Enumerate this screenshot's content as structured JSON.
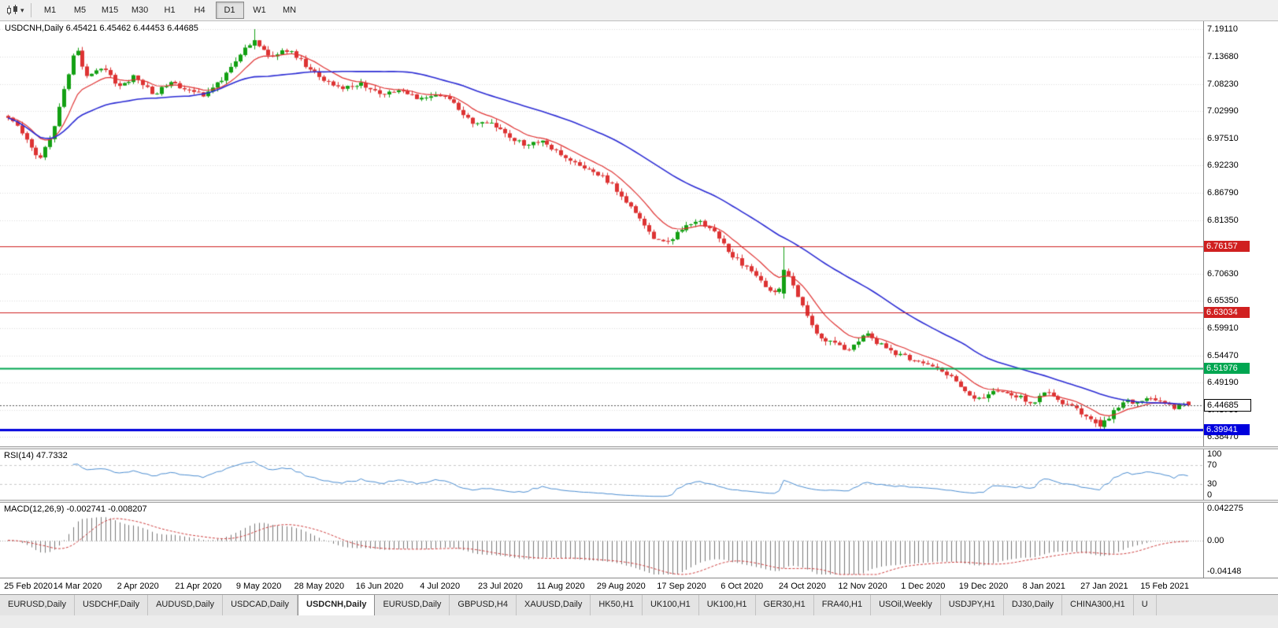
{
  "toolbar": {
    "chart_icon": "candlestick-chart-icon",
    "timeframes": [
      {
        "label": "M1",
        "active": false
      },
      {
        "label": "M5",
        "active": false
      },
      {
        "label": "M15",
        "active": false
      },
      {
        "label": "M30",
        "active": false
      },
      {
        "label": "H1",
        "active": false
      },
      {
        "label": "H4",
        "active": false
      },
      {
        "label": "D1",
        "active": true
      },
      {
        "label": "W1",
        "active": false
      },
      {
        "label": "MN",
        "active": false
      }
    ]
  },
  "chart": {
    "title": "USDCNH,Daily",
    "header_text": "USDCNH,Daily 6.45421 6.45462 6.44453 6.44685"
  },
  "colors": {
    "candle_up": "#13a013",
    "candle_down": "#dd3333",
    "ma_fast": "#e03333",
    "ma_slow": "#2b2bd4",
    "hline_red": "#d02020",
    "hline_green": "#00a651",
    "hline_blue": "#0000dd",
    "rsi_line": "#4c8ed2",
    "macd_hist": "#777777",
    "macd_signal": "#d04040",
    "grid": "#dcdcdc",
    "current_price_line": "#555555"
  },
  "chart_data": {
    "type": "candlestick",
    "symbol": "USDCNH",
    "timeframe": "Daily",
    "ohlc": {
      "open": 6.45421,
      "high": 6.45462,
      "low": 6.44453,
      "close": 6.44685
    },
    "y_axis_labels": [
      "7.19110",
      "7.13680",
      "7.08230",
      "7.02990",
      "6.97510",
      "6.92230",
      "6.86790",
      "6.81350",
      "6.76090",
      "6.70630",
      "6.65350",
      "6.59910",
      "6.54470",
      "6.49190",
      "6.43750",
      "6.38470"
    ],
    "y_range": [
      6.366,
      7.2067
    ],
    "x_labels": [
      "25 Feb 2020",
      "14 Mar 2020",
      "2 Apr 2020",
      "21 Apr 2020",
      "9 May 2020",
      "28 May 2020",
      "16 Jun 2020",
      "4 Jul 2020",
      "23 Jul 2020",
      "11 Aug 2020",
      "29 Aug 2020",
      "17 Sep 2020",
      "6 Oct 2020",
      "24 Oct 2020",
      "12 Nov 2020",
      "1 Dec 2020",
      "19 Dec 2020",
      "8 Jan 2021",
      "27 Jan 2021",
      "15 Feb 2021"
    ],
    "first_label_index": 2,
    "label_step": 13,
    "candle_count": 255,
    "price_path_anchors": [
      [
        0.0,
        7.02
      ],
      [
        0.012,
        6.988
      ],
      [
        0.026,
        6.934
      ],
      [
        0.036,
        6.975
      ],
      [
        0.048,
        7.075
      ],
      [
        0.057,
        7.158
      ],
      [
        0.066,
        7.1
      ],
      [
        0.08,
        7.118
      ],
      [
        0.094,
        7.078
      ],
      [
        0.108,
        7.098
      ],
      [
        0.123,
        7.062
      ],
      [
        0.138,
        7.09
      ],
      [
        0.152,
        7.068
      ],
      [
        0.168,
        7.06
      ],
      [
        0.183,
        7.098
      ],
      [
        0.2,
        7.15
      ],
      [
        0.21,
        7.168
      ],
      [
        0.222,
        7.135
      ],
      [
        0.238,
        7.152
      ],
      [
        0.252,
        7.12
      ],
      [
        0.268,
        7.088
      ],
      [
        0.283,
        7.072
      ],
      [
        0.298,
        7.085
      ],
      [
        0.315,
        7.063
      ],
      [
        0.332,
        7.072
      ],
      [
        0.35,
        7.053
      ],
      [
        0.368,
        7.06
      ],
      [
        0.383,
        7.032
      ],
      [
        0.395,
        6.998
      ],
      [
        0.408,
        7.012
      ],
      [
        0.422,
        6.982
      ],
      [
        0.438,
        6.962
      ],
      [
        0.452,
        6.972
      ],
      [
        0.468,
        6.942
      ],
      [
        0.483,
        6.925
      ],
      [
        0.497,
        6.908
      ],
      [
        0.51,
        6.888
      ],
      [
        0.523,
        6.852
      ],
      [
        0.536,
        6.815
      ],
      [
        0.549,
        6.772
      ],
      [
        0.56,
        6.768
      ],
      [
        0.572,
        6.8
      ],
      [
        0.586,
        6.812
      ],
      [
        0.6,
        6.788
      ],
      [
        0.614,
        6.742
      ],
      [
        0.628,
        6.716
      ],
      [
        0.642,
        6.68
      ],
      [
        0.652,
        6.668
      ],
      [
        0.658,
        6.712
      ],
      [
        0.666,
        6.682
      ],
      [
        0.676,
        6.632
      ],
      [
        0.688,
        6.578
      ],
      [
        0.7,
        6.568
      ],
      [
        0.713,
        6.556
      ],
      [
        0.727,
        6.588
      ],
      [
        0.742,
        6.562
      ],
      [
        0.757,
        6.545
      ],
      [
        0.772,
        6.53
      ],
      [
        0.787,
        6.522
      ],
      [
        0.8,
        6.502
      ],
      [
        0.812,
        6.472
      ],
      [
        0.824,
        6.458
      ],
      [
        0.838,
        6.476
      ],
      [
        0.856,
        6.464
      ],
      [
        0.868,
        6.452
      ],
      [
        0.878,
        6.474
      ],
      [
        0.89,
        6.458
      ],
      [
        0.903,
        6.442
      ],
      [
        0.914,
        6.42
      ],
      [
        0.925,
        6.406
      ],
      [
        0.935,
        6.428
      ],
      [
        0.946,
        6.458
      ],
      [
        0.956,
        6.45
      ],
      [
        0.966,
        6.462
      ],
      [
        0.976,
        6.452
      ],
      [
        0.988,
        6.444
      ],
      [
        1.0,
        6.4469
      ]
    ],
    "key_candles": [
      {
        "index": 53,
        "high": 7.1911
      },
      {
        "index": 167,
        "open": 6.668,
        "close": 6.715,
        "high": 6.7615,
        "low": 6.658
      },
      {
        "index": 235,
        "open": 6.418,
        "close": 6.405,
        "high": 6.424,
        "low": 6.4005
      },
      {
        "index": 254,
        "open": 6.45421,
        "close": 6.44685,
        "high": 6.45462,
        "low": 6.44453
      }
    ],
    "hlines": [
      {
        "label": "6.76157",
        "color_key": "hline_red",
        "width": 1
      },
      {
        "label": "6.63034",
        "color_key": "hline_red",
        "width": 1
      },
      {
        "label": "6.51976",
        "color_key": "hline_green",
        "width": 2
      },
      {
        "label": "6.39941",
        "color_key": "hline_blue",
        "width": 3
      }
    ],
    "current_price": {
      "label": "6.44685"
    },
    "indicators": {
      "rsi": {
        "name": "RSI",
        "period": 14,
        "value": "47.7332",
        "label": "RSI(14) 47.7332",
        "levels": [
          "100",
          "70",
          "30",
          "0"
        ],
        "level_lines": [
          70,
          30
        ]
      },
      "macd": {
        "name": "MACD",
        "params": "12,26,9",
        "value_main": "-0.002741",
        "value_signal": "-0.008207",
        "label": "MACD(12,26,9) -0.002741 -0.008207",
        "scale": [
          "0.042275",
          "0.00",
          "-0.04148"
        ],
        "range": 0.0455
      }
    },
    "moving_averages": [
      {
        "type": "ema",
        "period": 10,
        "color_key": "ma_fast"
      },
      {
        "type": "sma",
        "period": 40,
        "color_key": "ma_slow"
      }
    ]
  },
  "tabs": [
    {
      "label": "EURUSD,Daily",
      "active": false
    },
    {
      "label": "USDCHF,Daily",
      "active": false
    },
    {
      "label": "AUDUSD,Daily",
      "active": false
    },
    {
      "label": "USDCAD,Daily",
      "active": false
    },
    {
      "label": "USDCNH,Daily",
      "active": true
    },
    {
      "label": "EURUSD,Daily",
      "active": false
    },
    {
      "label": "GBPUSD,H4",
      "active": false
    },
    {
      "label": "XAUUSD,Daily",
      "active": false
    },
    {
      "label": "HK50,H1",
      "active": false
    },
    {
      "label": "UK100,H1",
      "active": false
    },
    {
      "label": "UK100,H1",
      "active": false
    },
    {
      "label": "GER30,H1",
      "active": false
    },
    {
      "label": "FRA40,H1",
      "active": false
    },
    {
      "label": "USOil,Weekly",
      "active": false
    },
    {
      "label": "USDJPY,H1",
      "active": false
    },
    {
      "label": "DJ30,Daily",
      "active": false
    },
    {
      "label": "CHINA300,H1",
      "active": false
    },
    {
      "label": "U",
      "active": false
    }
  ]
}
